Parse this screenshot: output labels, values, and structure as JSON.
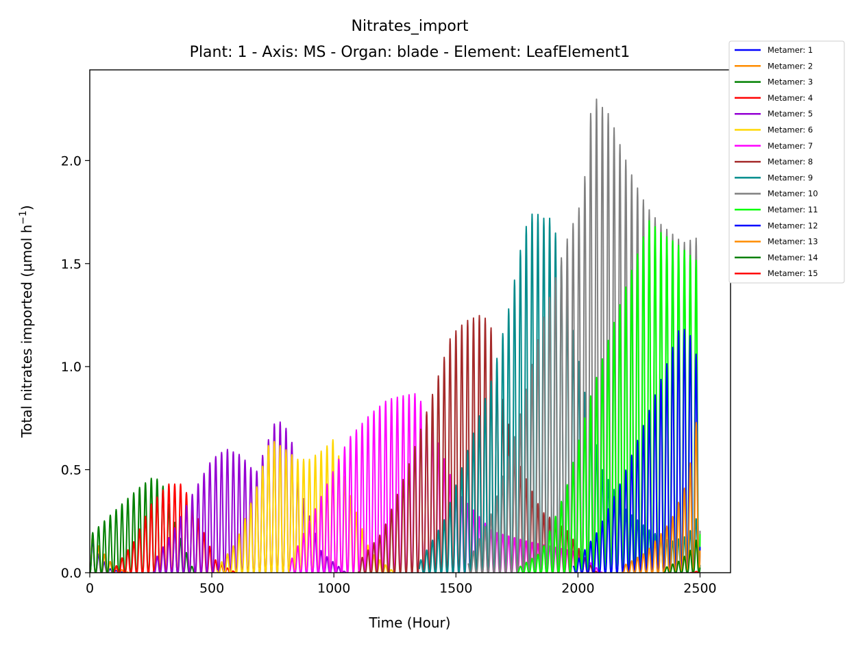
{
  "chart_data": {
    "type": "line",
    "title": "Nitrates_import",
    "subtitle": "Plant: 1 - Axis: MS - Organ: blade - Element: LeafElement1",
    "xlabel": "Time (Hour)",
    "ylabel": "Total nitrates imported (µmol h",
    "ylabel_sup": "−1",
    "ylabel_end": ")",
    "xlim": [
      0,
      2625
    ],
    "ylim": [
      0,
      2.44
    ],
    "xticks": [
      {
        "value": 0,
        "label": "0"
      },
      {
        "value": 500,
        "label": "500"
      },
      {
        "value": 1000,
        "label": "1000"
      },
      {
        "value": 1500,
        "label": "1500"
      },
      {
        "value": 2000,
        "label": "2000"
      },
      {
        "value": 2500,
        "label": "2500"
      }
    ],
    "yticks": [
      {
        "value": 0,
        "label": "0.0"
      },
      {
        "value": 0.5,
        "label": "0.5"
      },
      {
        "value": 1.0,
        "label": "1.0"
      },
      {
        "value": 1.5,
        "label": "1.5"
      },
      {
        "value": 2.0,
        "label": "2.0"
      }
    ],
    "grid": false,
    "legend_position": "outside-top-right",
    "day_period_hours": 24,
    "series": [
      {
        "name": "Metamer: 1",
        "color": "#0000ff",
        "peaks": [
          [
            0,
            0.2
          ],
          [
            30,
            0.1
          ],
          [
            80,
            0.02
          ],
          [
            140,
            0
          ]
        ]
      },
      {
        "name": "Metamer: 2",
        "color": "#ff8c00",
        "peaks": [
          [
            0,
            0.22
          ],
          [
            40,
            0.12
          ],
          [
            100,
            0.03
          ],
          [
            160,
            0
          ]
        ]
      },
      {
        "name": "Metamer: 3",
        "color": "#008000",
        "peaks": [
          [
            0,
            0.18
          ],
          [
            50,
            0.24
          ],
          [
            120,
            0.32
          ],
          [
            200,
            0.41
          ],
          [
            265,
            0.47
          ],
          [
            300,
            0.42
          ],
          [
            360,
            0.2
          ],
          [
            430,
            0
          ]
        ]
      },
      {
        "name": "Metamer: 4",
        "color": "#ff0000",
        "peaks": [
          [
            100,
            0.02
          ],
          [
            180,
            0.15
          ],
          [
            250,
            0.33
          ],
          [
            320,
            0.43
          ],
          [
            380,
            0.43
          ],
          [
            430,
            0.3
          ],
          [
            520,
            0.05
          ],
          [
            600,
            0
          ]
        ]
      },
      {
        "name": "Metamer: 5",
        "color": "#9400d3",
        "peaks": [
          [
            260,
            0.05
          ],
          [
            340,
            0.2
          ],
          [
            420,
            0.38
          ],
          [
            500,
            0.55
          ],
          [
            560,
            0.6
          ],
          [
            620,
            0.57
          ],
          [
            680,
            0.48
          ],
          [
            765,
            0.75
          ],
          [
            820,
            0.68
          ],
          [
            870,
            0.38
          ],
          [
            950,
            0.1
          ],
          [
            1050,
            0
          ]
        ]
      },
      {
        "name": "Metamer: 6",
        "color": "#ffd700",
        "peaks": [
          [
            520,
            0.02
          ],
          [
            600,
            0.15
          ],
          [
            680,
            0.4
          ],
          [
            740,
            0.65
          ],
          [
            800,
            0.6
          ],
          [
            850,
            0.55
          ],
          [
            900,
            0.55
          ],
          [
            960,
            0.6
          ],
          [
            1000,
            0.65
          ],
          [
            1060,
            0.4
          ],
          [
            1150,
            0.1
          ],
          [
            1250,
            0
          ]
        ]
      },
      {
        "name": "Metamer: 7",
        "color": "#ff00ff",
        "peaks": [
          [
            820,
            0.05
          ],
          [
            900,
            0.25
          ],
          [
            980,
            0.45
          ],
          [
            1060,
            0.65
          ],
          [
            1150,
            0.77
          ],
          [
            1220,
            0.84
          ],
          [
            1290,
            0.86
          ],
          [
            1340,
            0.87
          ],
          [
            1390,
            0.75
          ],
          [
            1500,
            0.4
          ],
          [
            1650,
            0.2
          ],
          [
            1800,
            0.15
          ],
          [
            2000,
            0.1
          ],
          [
            2100,
            0
          ]
        ]
      },
      {
        "name": "Metamer: 8",
        "color": "#a52a2a",
        "peaks": [
          [
            1100,
            0.05
          ],
          [
            1200,
            0.2
          ],
          [
            1300,
            0.5
          ],
          [
            1400,
            0.85
          ],
          [
            1480,
            1.15
          ],
          [
            1540,
            1.22
          ],
          [
            1600,
            1.25
          ],
          [
            1640,
            1.22
          ],
          [
            1680,
            0.9
          ],
          [
            1750,
            0.55
          ],
          [
            1850,
            0.3
          ],
          [
            1960,
            0.2
          ],
          [
            2040,
            0.05
          ],
          [
            2080,
            0
          ]
        ]
      },
      {
        "name": "Metamer: 9",
        "color": "#008b8b",
        "peaks": [
          [
            1350,
            0.05
          ],
          [
            1450,
            0.25
          ],
          [
            1550,
            0.6
          ],
          [
            1650,
            0.95
          ],
          [
            1720,
            1.3
          ],
          [
            1780,
            1.66
          ],
          [
            1820,
            1.76
          ],
          [
            1850,
            1.72
          ],
          [
            1890,
            1.72
          ],
          [
            1920,
            1.6
          ],
          [
            1960,
            1.3
          ],
          [
            2040,
            0.8
          ],
          [
            2100,
            0.5
          ],
          [
            2200,
            0.3
          ],
          [
            2300,
            0.2
          ],
          [
            2380,
            0.15
          ],
          [
            2450,
            0.18
          ],
          [
            2500,
            0.3
          ]
        ]
      },
      {
        "name": "Metamer: 10",
        "color": "#808080",
        "peaks": [
          [
            1550,
            0.05
          ],
          [
            1650,
            0.3
          ],
          [
            1750,
            0.7
          ],
          [
            1850,
            1.2
          ],
          [
            1950,
            1.6
          ],
          [
            2020,
            1.82
          ],
          [
            2060,
            2.33
          ],
          [
            2090,
            2.27
          ],
          [
            2130,
            2.22
          ],
          [
            2180,
            2.05
          ],
          [
            2230,
            1.9
          ],
          [
            2280,
            1.78
          ],
          [
            2330,
            1.7
          ],
          [
            2380,
            1.65
          ],
          [
            2430,
            1.6
          ],
          [
            2500,
            1.63
          ]
        ]
      },
      {
        "name": "Metamer: 11",
        "color": "#00ff00",
        "peaks": [
          [
            1750,
            0.02
          ],
          [
            1850,
            0.1
          ],
          [
            1950,
            0.4
          ],
          [
            2050,
            0.85
          ],
          [
            2130,
            1.15
          ],
          [
            2200,
            1.4
          ],
          [
            2260,
            1.6
          ],
          [
            2290,
            1.71
          ],
          [
            2340,
            1.65
          ],
          [
            2400,
            1.6
          ],
          [
            2450,
            1.55
          ],
          [
            2500,
            1.5
          ]
        ]
      },
      {
        "name": "Metamer: 12",
        "color": "#0000ff",
        "peaks": [
          [
            1980,
            0.03
          ],
          [
            2080,
            0.2
          ],
          [
            2180,
            0.45
          ],
          [
            2280,
            0.75
          ],
          [
            2360,
            1.0
          ],
          [
            2420,
            1.2
          ],
          [
            2460,
            1.15
          ],
          [
            2500,
            1.0
          ]
        ]
      },
      {
        "name": "Metamer: 13",
        "color": "#ff8c00",
        "peaks": [
          [
            2180,
            0.03
          ],
          [
            2280,
            0.1
          ],
          [
            2380,
            0.25
          ],
          [
            2450,
            0.45
          ],
          [
            2500,
            0.86
          ]
        ]
      },
      {
        "name": "Metamer: 14",
        "color": "#008000",
        "peaks": [
          [
            2350,
            0.02
          ],
          [
            2420,
            0.06
          ],
          [
            2470,
            0.12
          ],
          [
            2500,
            0.2
          ]
        ]
      },
      {
        "name": "Metamer: 15",
        "color": "#ff0000",
        "peaks": [
          [
            2460,
            0.0
          ],
          [
            2500,
            0.01
          ]
        ]
      }
    ]
  }
}
